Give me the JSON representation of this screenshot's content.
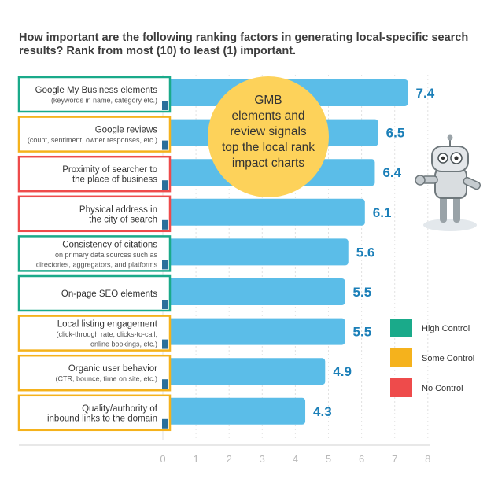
{
  "chart_data": {
    "type": "bar",
    "orientation": "horizontal",
    "title": "How important are the following ranking factors in generating local-specific search results? Rank from most (10) to least (1) important.",
    "xlim": [
      0,
      8
    ],
    "xticks": [
      "0",
      "1",
      "2",
      "3",
      "4",
      "5",
      "6",
      "7",
      "8"
    ],
    "bar_color": "#5bbde8",
    "categories": [
      {
        "line1": "Google My Business elements",
        "line2": "(keywords in name, category etc.)",
        "value": 7.4,
        "value_label": "7.4",
        "control": "high"
      },
      {
        "line1": "Google reviews",
        "line2": "(count, sentiment, owner responses, etc.)",
        "value": 6.5,
        "value_label": "6.5",
        "control": "some"
      },
      {
        "line1": "Proximity of searcher to",
        "line2": "the place of business",
        "value": 6.4,
        "value_label": "6.4",
        "control": "none"
      },
      {
        "line1": "Physical address in",
        "line2": "the city of search",
        "value": 6.1,
        "value_label": "6.1",
        "control": "none"
      },
      {
        "line1": "Consistency of citations",
        "line2": "on primary data sources such as",
        "line3": "directories, aggregators, and platforms",
        "value": 5.6,
        "value_label": "5.6",
        "control": "high"
      },
      {
        "line1": "On-page SEO elements",
        "line2": "",
        "value": 5.5,
        "value_label": "5.5",
        "control": "high"
      },
      {
        "line1": "Local listing engagement",
        "line2": "(click-through rate, clicks-to-call,",
        "line3": "online bookings, etc.)",
        "value": 5.5,
        "value_label": "5.5",
        "control": "some"
      },
      {
        "line1": "Organic user behavior",
        "line2": "(CTR, bounce, time on site, etc.)",
        "value": 4.9,
        "value_label": "4.9",
        "control": "some"
      },
      {
        "line1": "Quality/authority of",
        "line2": "inbound links to the domain",
        "value": 4.3,
        "value_label": "4.3",
        "control": "some"
      }
    ],
    "legend": [
      {
        "key": "high",
        "label": "High Control",
        "color": "#1aaa8a"
      },
      {
        "key": "some",
        "label": "Some Control",
        "color": "#f5b21c"
      },
      {
        "key": "none",
        "label": "No Control",
        "color": "#ee4b4b"
      }
    ],
    "legend_position": "right",
    "annotation": {
      "lines": [
        "GMB",
        "elements and",
        "review signals",
        "top the local rank",
        "impact charts"
      ],
      "color": "#fdd25a"
    }
  }
}
